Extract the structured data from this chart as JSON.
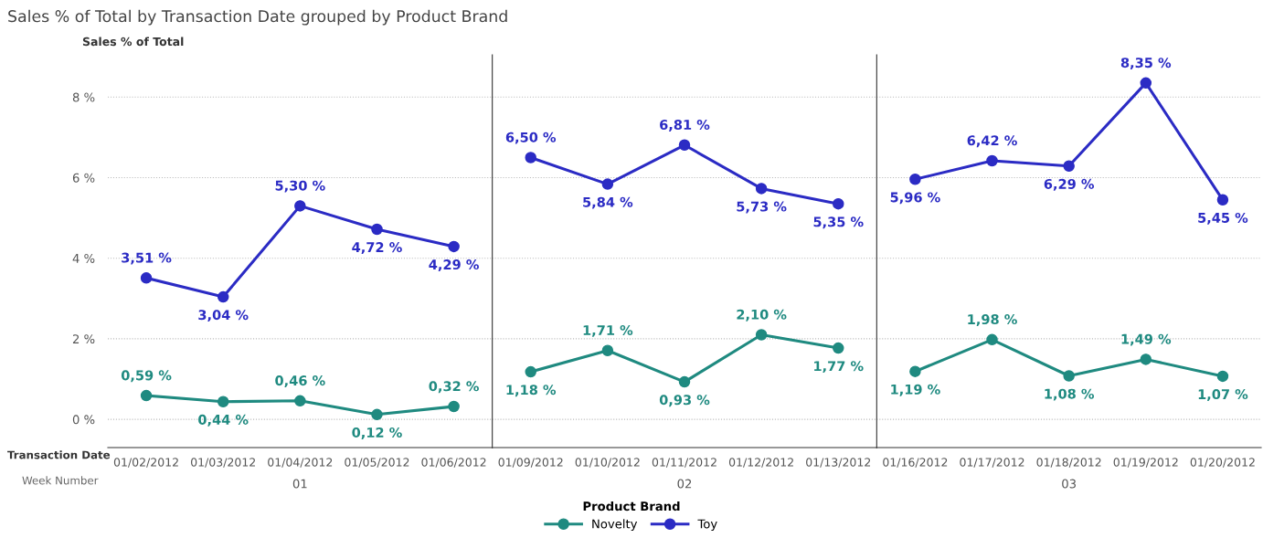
{
  "chart_data": [
    {
      "type": "line",
      "title": "Sales % of Total by Transaction Date grouped by Product Brand",
      "ylabel": "Sales % of Total",
      "xlabel": "01",
      "legend_title": "Product Brand",
      "legend": "bottom",
      "grid": "y",
      "marker": "circle",
      "line_style": "solid",
      "annotations": [
        "Transaction Date",
        "Week Number"
      ],
      "categories": [
        "01/02/2012",
        "01/03/2012",
        "01/04/2012",
        "01/05/2012",
        "01/06/2012"
      ],
      "ylim": [
        -0.7,
        9.05
      ],
      "yticks": [
        {
          "value": 0,
          "label": "0 %"
        },
        {
          "value": 2,
          "label": "2 %"
        },
        {
          "value": 4,
          "label": "4 %"
        },
        {
          "value": 6,
          "label": "6 %"
        },
        {
          "value": 8,
          "label": "8 %"
        }
      ],
      "series": [
        {
          "name": "Novelty",
          "color": "#1f8a80",
          "values": [
            0.59,
            0.44,
            0.46,
            0.12,
            0.32
          ],
          "value_labels": [
            "0,59 %",
            "0,44 %",
            "0,46 %",
            "0,12 %",
            "0,32 %"
          ]
        },
        {
          "name": "Toy",
          "color": "#2b2bc4",
          "values": [
            3.51,
            3.04,
            5.3,
            4.72,
            4.29
          ],
          "value_labels": [
            "3,51 %",
            "3,04 %",
            "5,30 %",
            "4,72 %",
            "4,29 %"
          ]
        }
      ]
    },
    {
      "type": "line",
      "xlabel": "02",
      "grid": "y",
      "marker": "circle",
      "line_style": "solid",
      "tick_labels": "x",
      "categories": [
        "01/09/2012",
        "01/10/2012",
        "01/11/2012",
        "01/12/2012",
        "01/13/2012"
      ],
      "ylim": [
        -0.7,
        9.05
      ],
      "yticks": [
        {
          "value": 0,
          "label": null
        },
        {
          "value": 2,
          "label": null
        },
        {
          "value": 4,
          "label": null
        },
        {
          "value": 6,
          "label": null
        },
        {
          "value": 8,
          "label": null
        }
      ],
      "series": [
        {
          "color": "#1f8a80",
          "values": [
            1.18,
            1.71,
            0.93,
            2.1,
            1.77
          ],
          "value_labels": [
            "1,18 %",
            "1,71 %",
            "0,93 %",
            "2,10 %",
            "1,77 %"
          ]
        },
        {
          "color": "#2b2bc4",
          "values": [
            6.5,
            5.84,
            6.81,
            5.73,
            5.35
          ],
          "value_labels": [
            "6,50 %",
            "5,84 %",
            "6,81 %",
            "5,73 %",
            "5,35 %"
          ]
        }
      ]
    },
    {
      "type": "line",
      "xlabel": "03",
      "grid": "y",
      "marker": "circle",
      "line_style": "solid",
      "tick_labels": "x",
      "categories": [
        "01/16/2012",
        "01/17/2012",
        "01/18/2012",
        "01/19/2012",
        "01/20/2012"
      ],
      "ylim": [
        -0.7,
        9.05
      ],
      "yticks": [
        {
          "value": 0,
          "label": null
        },
        {
          "value": 2,
          "label": null
        },
        {
          "value": 4,
          "label": null
        },
        {
          "value": 6,
          "label": null
        },
        {
          "value": 8,
          "label": null
        }
      ],
      "series": [
        {
          "color": "#1f8a80",
          "values": [
            1.19,
            1.98,
            1.08,
            1.49,
            1.07
          ],
          "value_labels": [
            "1,19 %",
            "1,98 %",
            "1,08 %",
            "1,49 %",
            "1,07 %"
          ]
        },
        {
          "color": "#2b2bc4",
          "values": [
            5.96,
            6.42,
            6.29,
            8.35,
            5.45
          ],
          "value_labels": [
            "5,96 %",
            "6,42 %",
            "6,29 %",
            "8,35 %",
            "5,45 %"
          ]
        }
      ]
    }
  ]
}
